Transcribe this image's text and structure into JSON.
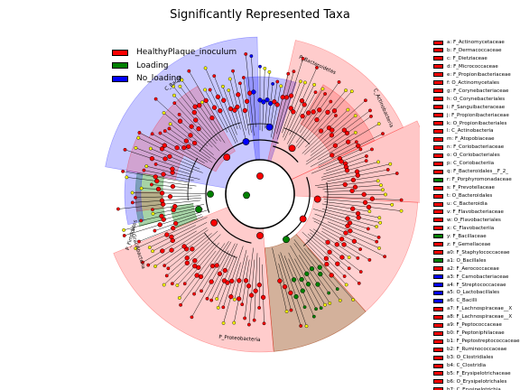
{
  "title": "Significantly Represented Taxa",
  "colors": {
    "HealthyPlaque_inoculum": "#ff0000",
    "Loading": "#008000",
    "No_loading": "#0000ff",
    "node_default": "#ffff00"
  },
  "legend": [
    {
      "label": "HealthyPlaque_inoculum",
      "group": "HealthyPlaque_inoculum"
    },
    {
      "label": "Loading",
      "group": "Loading"
    },
    {
      "label": "No_loading",
      "group": "No_loading"
    }
  ],
  "clade_labels": [
    {
      "text": "P_Bacteroidetes"
    },
    {
      "text": "C_Actinobacteria"
    },
    {
      "text": "P_Proteobacteria"
    },
    {
      "text": "C_Bacilli"
    },
    {
      "text": "P_Gracilibacteria"
    },
    {
      "text": "P_Firmicutes"
    }
  ],
  "side_legend": [
    {
      "label": "a: F_Actinomycetaceae",
      "group": "HealthyPlaque_inoculum"
    },
    {
      "label": "b: F_Dermacoccaceae",
      "group": "HealthyPlaque_inoculum"
    },
    {
      "label": "c: F_Dietziaceae",
      "group": "HealthyPlaque_inoculum"
    },
    {
      "label": "d: F_Micrococcaceae",
      "group": "HealthyPlaque_inoculum"
    },
    {
      "label": "e: F_Propionibacteriaceae",
      "group": "HealthyPlaque_inoculum"
    },
    {
      "label": "f: O_Actinomycetales",
      "group": "HealthyPlaque_inoculum"
    },
    {
      "label": "g: F_Corynebacteriaceae",
      "group": "HealthyPlaque_inoculum"
    },
    {
      "label": "h: O_Corynebacteriales",
      "group": "HealthyPlaque_inoculum"
    },
    {
      "label": "i: F_Sanguibacteraceae",
      "group": "HealthyPlaque_inoculum"
    },
    {
      "label": "j: F_Propionibacteriaceae",
      "group": "HealthyPlaque_inoculum"
    },
    {
      "label": "k: O_Propionibacteriales",
      "group": "HealthyPlaque_inoculum"
    },
    {
      "label": "l: C_Actinobacteria",
      "group": "HealthyPlaque_inoculum"
    },
    {
      "label": "m: F_Atopobiaceae",
      "group": "HealthyPlaque_inoculum"
    },
    {
      "label": "n: F_Coriobacteriaceae",
      "group": "HealthyPlaque_inoculum"
    },
    {
      "label": "o: O_Coriobacteriales",
      "group": "HealthyPlaque_inoculum"
    },
    {
      "label": "p: C_Coriobacteriia",
      "group": "HealthyPlaque_inoculum"
    },
    {
      "label": "q: F_Bacteroidales__F_2_",
      "group": "HealthyPlaque_inoculum"
    },
    {
      "label": "r: F_Porphyromonadaceae",
      "group": "Loading"
    },
    {
      "label": "s: F_Prevotellaceae",
      "group": "HealthyPlaque_inoculum"
    },
    {
      "label": "t: O_Bacteroidales",
      "group": "HealthyPlaque_inoculum"
    },
    {
      "label": "u: C_Bacteroidia",
      "group": "HealthyPlaque_inoculum"
    },
    {
      "label": "v: F_Flavobacteriaceae",
      "group": "HealthyPlaque_inoculum"
    },
    {
      "label": "w: O_Flavobacteriales",
      "group": "HealthyPlaque_inoculum"
    },
    {
      "label": "x: C_Flavobacteriia",
      "group": "HealthyPlaque_inoculum"
    },
    {
      "label": "y: F_Bacillaceae",
      "group": "Loading"
    },
    {
      "label": "z: F_Gemellaceae",
      "group": "HealthyPlaque_inoculum"
    },
    {
      "label": "a0: F_Staphylococcaceae",
      "group": "HealthyPlaque_inoculum"
    },
    {
      "label": "a1: O_Bacillales",
      "group": "Loading"
    },
    {
      "label": "a2: F_Aerococcaceae",
      "group": "HealthyPlaque_inoculum"
    },
    {
      "label": "a3: F_Carnobacteriaceae",
      "group": "No_loading"
    },
    {
      "label": "a4: F_Streptococcaceae",
      "group": "No_loading"
    },
    {
      "label": "a5: O_Lactobacillales",
      "group": "No_loading"
    },
    {
      "label": "a6: C_Bacilli",
      "group": "No_loading"
    },
    {
      "label": "a7: F_Lachnospiraceae__X",
      "group": "HealthyPlaque_inoculum"
    },
    {
      "label": "a8: F_Lachnospiraceae__X",
      "group": "HealthyPlaque_inoculum"
    },
    {
      "label": "a9: F_Peptococcaceae",
      "group": "HealthyPlaque_inoculum"
    },
    {
      "label": "b0: F_Peptoniphilaceae",
      "group": "HealthyPlaque_inoculum"
    },
    {
      "label": "b1: F_Peptostreptococcaceae",
      "group": "HealthyPlaque_inoculum"
    },
    {
      "label": "b2: F_Ruminococcaceae",
      "group": "HealthyPlaque_inoculum"
    },
    {
      "label": "b3: O_Clostridiales",
      "group": "HealthyPlaque_inoculum"
    },
    {
      "label": "b4: C_Clostridia",
      "group": "HealthyPlaque_inoculum"
    },
    {
      "label": "b5: F_Erysipelotrichaceae",
      "group": "HealthyPlaque_inoculum"
    },
    {
      "label": "b6: O_Erysipelotrichales",
      "group": "HealthyPlaque_inoculum"
    },
    {
      "label": "b7: C_Erysipelotrichia",
      "group": "HealthyPlaque_inoculum"
    }
  ]
}
